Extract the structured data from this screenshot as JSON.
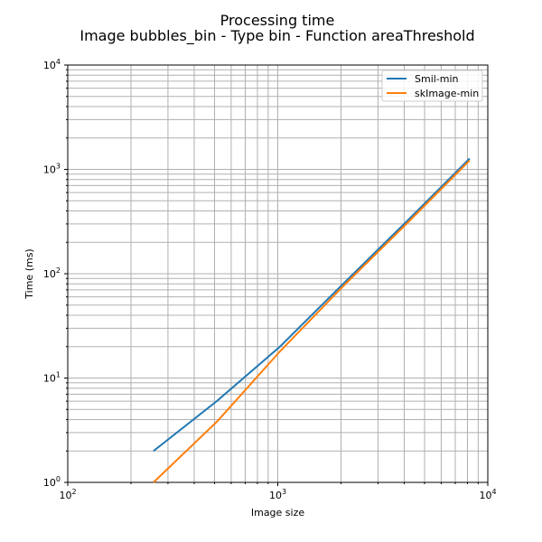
{
  "chart_data": {
    "type": "line",
    "title": "Processing time",
    "subtitle": "Image bubbles_bin - Type bin - Function areaThreshold",
    "xlabel": "Image size",
    "ylabel": "Time (ms)",
    "xscale": "log",
    "yscale": "log",
    "xlim": [
      100,
      10000
    ],
    "ylim": [
      1,
      10000
    ],
    "xticks": [
      {
        "value": 100,
        "base": "10",
        "exp": "2"
      },
      {
        "value": 1000,
        "base": "10",
        "exp": "3"
      },
      {
        "value": 10000,
        "base": "10",
        "exp": "4"
      }
    ],
    "yticks": [
      {
        "value": 1,
        "base": "10",
        "exp": "0"
      },
      {
        "value": 10,
        "base": "10",
        "exp": "1"
      },
      {
        "value": 100,
        "base": "10",
        "exp": "2"
      },
      {
        "value": 1000,
        "base": "10",
        "exp": "3"
      },
      {
        "value": 10000,
        "base": "10",
        "exp": "4"
      }
    ],
    "grid": true,
    "legend_position": "top-right",
    "series": [
      {
        "name": "Smil-min",
        "color": "#1f77b4",
        "x": [
          256,
          512,
          1024,
          2048,
          4096,
          8192
        ],
        "y": [
          2.0,
          6.0,
          20,
          80,
          315,
          1270
        ]
      },
      {
        "name": "skImage-min",
        "color": "#ff7f0e",
        "x": [
          256,
          512,
          1024,
          2048,
          4096,
          8192
        ],
        "y": [
          1.0,
          3.8,
          18,
          76,
          300,
          1220
        ]
      }
    ]
  }
}
